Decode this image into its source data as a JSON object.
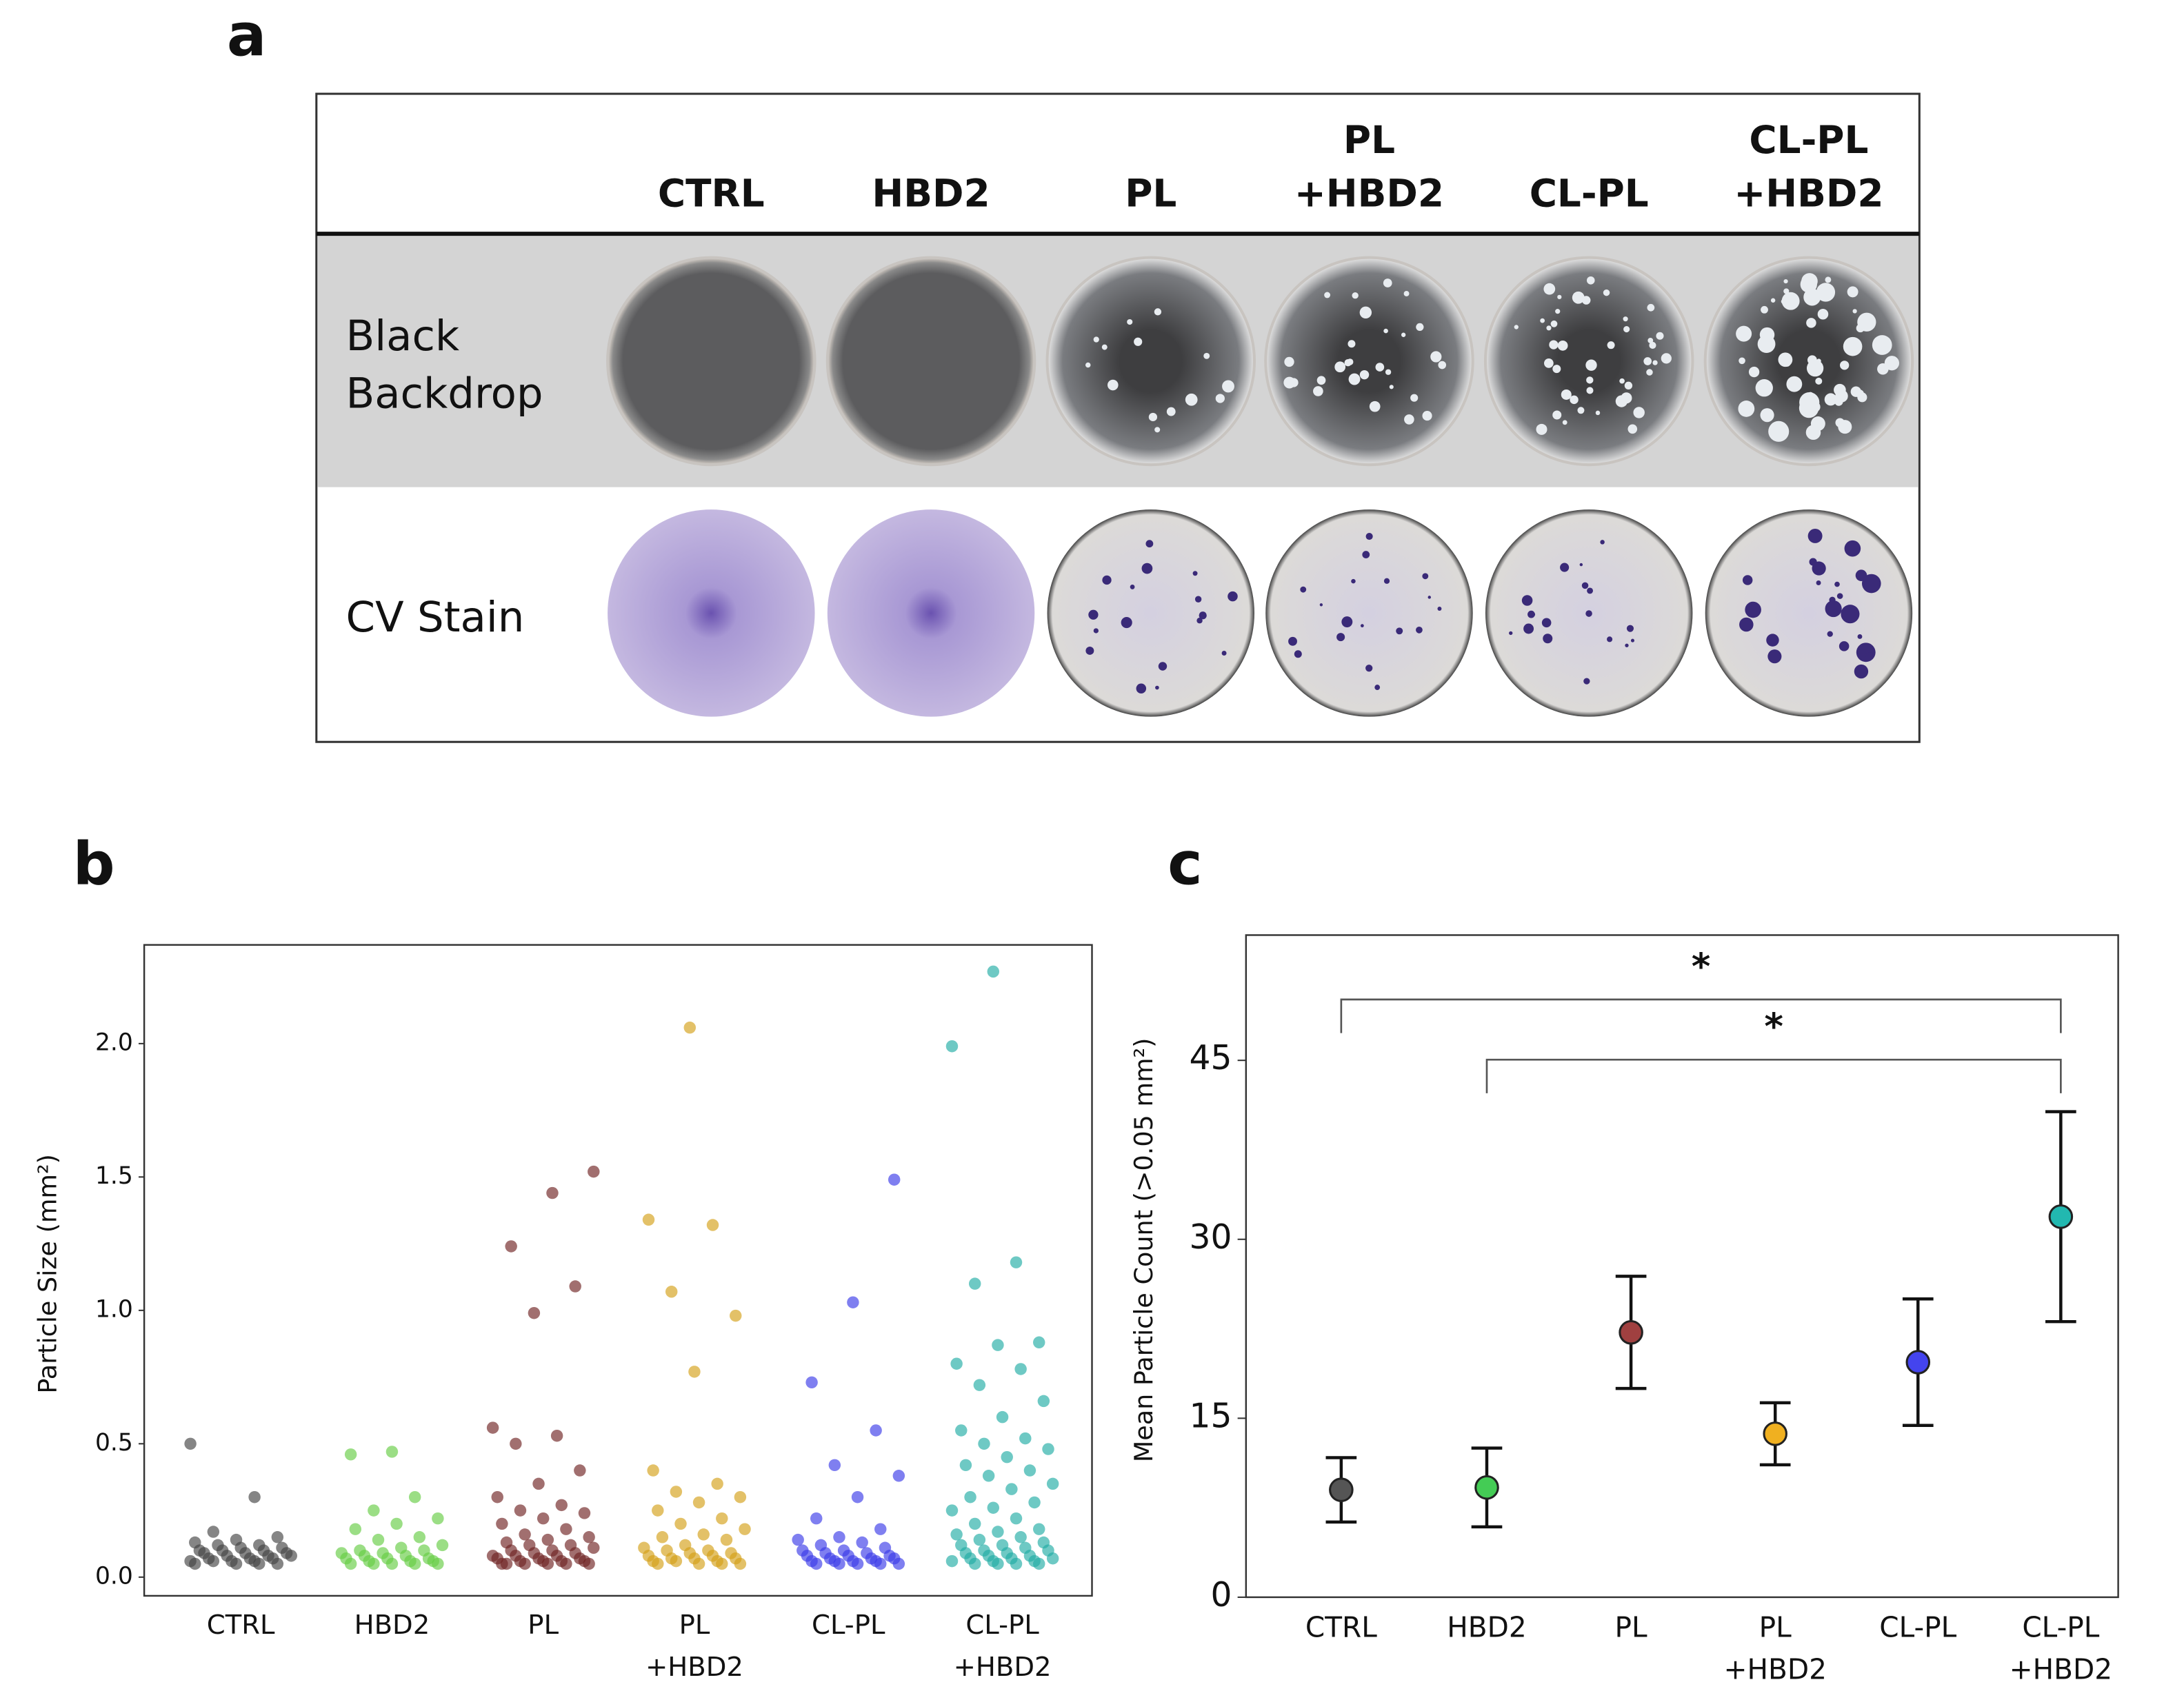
{
  "panel_a": {
    "label": "a",
    "columns": [
      [
        "CTRL"
      ],
      [
        "HBD2"
      ],
      [
        "PL"
      ],
      [
        "PL",
        "+HBD2"
      ],
      [
        "CL-PL"
      ],
      [
        "CL-PL",
        "+HBD2"
      ]
    ],
    "rows": [
      [
        "Black",
        "Backdrop"
      ],
      [
        "CV Stain"
      ]
    ]
  },
  "chart_data": [
    {
      "type": "strip",
      "panel_label": "b",
      "ylabel": "Particle Size (mm²)",
      "categories": [
        [
          "CTRL"
        ],
        [
          "HBD2"
        ],
        [
          "PL"
        ],
        [
          "PL",
          "+HBD2"
        ],
        [
          "CL-PL"
        ],
        [
          "CL-PL",
          "+HBD2"
        ]
      ],
      "colors": [
        "#444444",
        "#66cc44",
        "#6e2222",
        "#d4a017",
        "#3a3ae8",
        "#20aca4"
      ],
      "values": [
        [
          0.5,
          0.3,
          0.17,
          0.15,
          0.14,
          0.13,
          0.12,
          0.12,
          0.11,
          0.11,
          0.1,
          0.1,
          0.1,
          0.09,
          0.09,
          0.09,
          0.08,
          0.08,
          0.08,
          0.07,
          0.07,
          0.07,
          0.06,
          0.06,
          0.06,
          0.06,
          0.05,
          0.05,
          0.05,
          0.05
        ],
        [
          0.47,
          0.46,
          0.3,
          0.25,
          0.22,
          0.2,
          0.18,
          0.15,
          0.14,
          0.12,
          0.11,
          0.1,
          0.1,
          0.09,
          0.09,
          0.08,
          0.08,
          0.07,
          0.07,
          0.07,
          0.06,
          0.06,
          0.06,
          0.05,
          0.05,
          0.05,
          0.05,
          0.05
        ],
        [
          1.52,
          1.44,
          1.24,
          1.09,
          0.99,
          0.56,
          0.53,
          0.5,
          0.4,
          0.35,
          0.3,
          0.27,
          0.25,
          0.24,
          0.22,
          0.2,
          0.18,
          0.16,
          0.15,
          0.14,
          0.13,
          0.12,
          0.12,
          0.11,
          0.1,
          0.1,
          0.09,
          0.09,
          0.08,
          0.08,
          0.08,
          0.07,
          0.07,
          0.07,
          0.06,
          0.06,
          0.06,
          0.06,
          0.05,
          0.05,
          0.05,
          0.05,
          0.05,
          0.05
        ],
        [
          2.06,
          1.34,
          1.32,
          1.07,
          0.98,
          0.77,
          0.4,
          0.35,
          0.32,
          0.3,
          0.28,
          0.25,
          0.22,
          0.2,
          0.18,
          0.16,
          0.15,
          0.14,
          0.12,
          0.11,
          0.1,
          0.1,
          0.09,
          0.09,
          0.08,
          0.08,
          0.07,
          0.07,
          0.07,
          0.06,
          0.06,
          0.06,
          0.05,
          0.05,
          0.05,
          0.05
        ],
        [
          1.49,
          1.03,
          0.73,
          0.55,
          0.42,
          0.38,
          0.3,
          0.22,
          0.18,
          0.15,
          0.14,
          0.13,
          0.12,
          0.11,
          0.1,
          0.1,
          0.09,
          0.09,
          0.08,
          0.08,
          0.08,
          0.07,
          0.07,
          0.07,
          0.06,
          0.06,
          0.06,
          0.06,
          0.05,
          0.05,
          0.05,
          0.05,
          0.05
        ],
        [
          2.27,
          1.99,
          1.18,
          1.1,
          0.88,
          0.87,
          0.8,
          0.78,
          0.72,
          0.66,
          0.6,
          0.55,
          0.52,
          0.5,
          0.48,
          0.45,
          0.42,
          0.4,
          0.38,
          0.35,
          0.33,
          0.3,
          0.28,
          0.26,
          0.25,
          0.22,
          0.2,
          0.18,
          0.17,
          0.16,
          0.15,
          0.14,
          0.13,
          0.12,
          0.12,
          0.11,
          0.1,
          0.1,
          0.09,
          0.09,
          0.08,
          0.08,
          0.07,
          0.07,
          0.07,
          0.06,
          0.06,
          0.06,
          0.05,
          0.05,
          0.05,
          0.05
        ]
      ],
      "ylim": [
        -0.07,
        2.37
      ],
      "yticks": [
        {
          "value": 0,
          "label": "0.0"
        },
        0.5,
        {
          "value": 1,
          "label": "1.0"
        },
        1.5,
        {
          "value": 2,
          "label": "2.0"
        }
      ]
    },
    {
      "type": "errorbar",
      "panel_label": "c",
      "ylabel": "Mean Particle Count (>0.05 mm²)",
      "categories": [
        [
          "CTRL"
        ],
        [
          "HBD2"
        ],
        [
          "PL"
        ],
        [
          "PL",
          "+HBD2"
        ],
        [
          "CL-PL"
        ],
        [
          "CL-PL",
          "+HBD2"
        ]
      ],
      "colors": [
        "#555555",
        "#44cc55",
        "#a04040",
        "#f0b020",
        "#4444ee",
        "#22b8b0"
      ],
      "values": [
        9.0,
        9.2,
        22.2,
        13.7,
        19.7,
        31.9
      ],
      "errors": [
        2.7,
        3.3,
        4.7,
        2.6,
        5.3,
        8.8
      ],
      "ylim": [
        0,
        55.5
      ],
      "yticks": [
        0,
        15,
        30,
        45
      ],
      "brackets": [
        {
          "label": "*",
          "between": [
            0,
            5
          ]
        },
        {
          "label": "*",
          "between": [
            1,
            5
          ]
        }
      ]
    }
  ]
}
